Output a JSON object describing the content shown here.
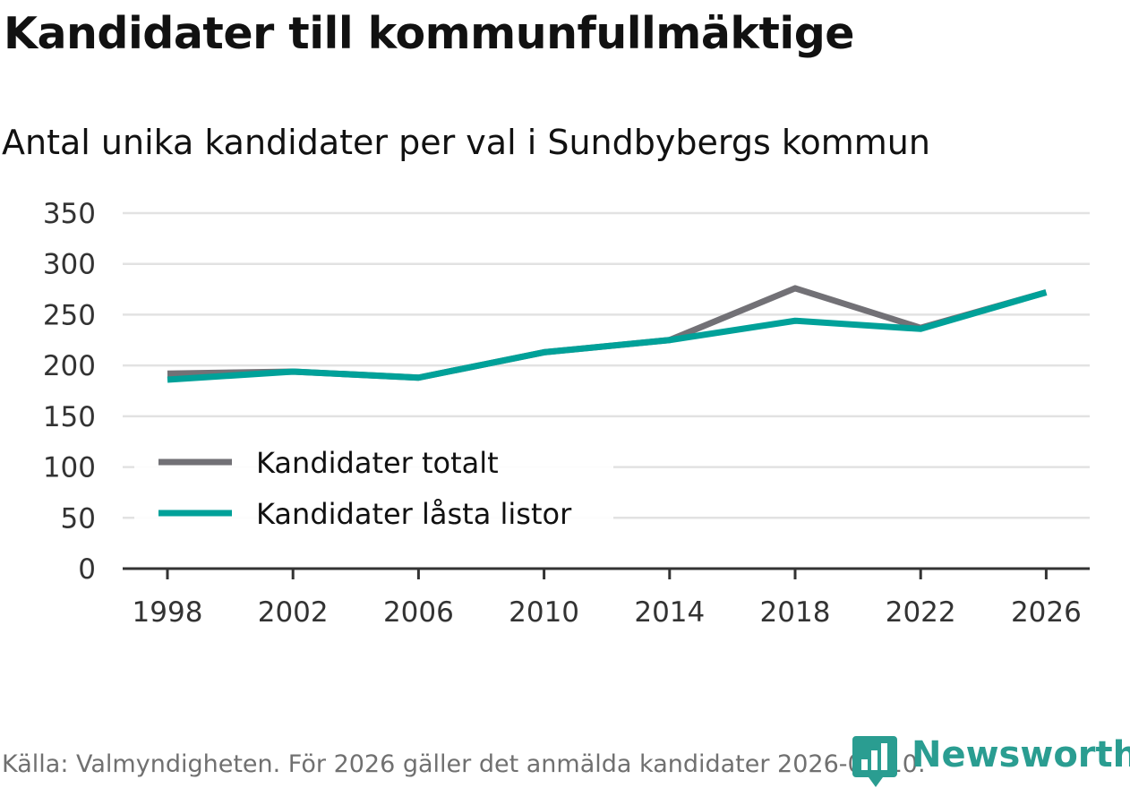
{
  "title": "Kandidater till kommunfullmäktige",
  "subtitle": "Antal unika kandidater per val i Sundbybergs kommun",
  "source": "Källa: Valmyndigheten. För 2026 gäller det anmälda kandidater 2026-04-10.",
  "brand": {
    "name": "Newsworthy",
    "icon": "bar-chart-pin-icon",
    "color": "#2a9d91"
  },
  "chart_data": {
    "type": "line",
    "title": "Kandidater till kommunfullmäktige",
    "subtitle": "Antal unika kandidater per val i Sundbybergs kommun",
    "xlabel": "",
    "ylabel": "",
    "x": [
      "1998",
      "2002",
      "2006",
      "2010",
      "2014",
      "2018",
      "2022",
      "2026"
    ],
    "ylim": [
      0,
      350
    ],
    "yticks": [
      0,
      50,
      100,
      150,
      200,
      250,
      300,
      350
    ],
    "grid": true,
    "legend_position": "bottom-left",
    "series": [
      {
        "name": "Kandidater totalt",
        "color": "#727176",
        "values": [
          192,
          194,
          188,
          213,
          225,
          276,
          237,
          272
        ]
      },
      {
        "name": "Kandidater låsta listor",
        "color": "#00a199",
        "values": [
          186,
          194,
          188,
          213,
          225,
          244,
          236,
          272
        ]
      }
    ]
  }
}
